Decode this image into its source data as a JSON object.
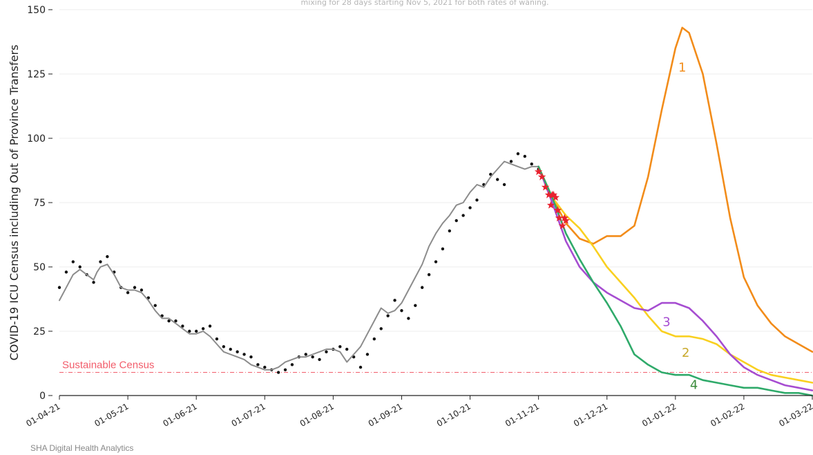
{
  "chart_data": {
    "type": "line",
    "subtitle": "mixing for 28 days starting Nov 5, 2021 for both rates of waning.",
    "ylabel": "COVID-19 ICU Census including Out of Province Transfers",
    "ylim": [
      0,
      150
    ],
    "yticks": [
      0,
      25,
      50,
      75,
      100,
      125,
      150
    ],
    "xticks": [
      "01-04-21",
      "01-05-21",
      "01-06-21",
      "01-07-21",
      "01-08-21",
      "01-09-21",
      "01-10-21",
      "01-11-21",
      "01-12-21",
      "01-01-22",
      "01-02-22",
      "01-03-22"
    ],
    "grid": "horizontal",
    "footer": "SHA Digital Health Analytics",
    "reference_line": {
      "label": "Sustainable Census",
      "value": 9,
      "color": "#f25c6a"
    },
    "observed_points": {
      "color": "#111111",
      "x": [
        0.0,
        0.1,
        0.2,
        0.3,
        0.4,
        0.5,
        0.6,
        0.7,
        0.8,
        0.9,
        1.0,
        1.1,
        1.2,
        1.3,
        1.4,
        1.5,
        1.6,
        1.7,
        1.8,
        1.9,
        2.0,
        2.1,
        2.2,
        2.3,
        2.4,
        2.5,
        2.6,
        2.7,
        2.8,
        2.9,
        3.0,
        3.1,
        3.2,
        3.3,
        3.4,
        3.5,
        3.6,
        3.7,
        3.8,
        3.9,
        4.0,
        4.1,
        4.2,
        4.3,
        4.4,
        4.5,
        4.6,
        4.7,
        4.8,
        4.9,
        5.0,
        5.1,
        5.2,
        5.3,
        5.4,
        5.5,
        5.6,
        5.7,
        5.8,
        5.9,
        6.0,
        6.1,
        6.2,
        6.3,
        6.4,
        6.5,
        6.6,
        6.7,
        6.8,
        6.9,
        7.0
      ],
      "y": [
        42,
        48,
        52,
        50,
        47,
        44,
        52,
        54,
        48,
        42,
        40,
        42,
        41,
        38,
        35,
        31,
        29,
        29,
        27,
        25,
        25,
        26,
        27,
        22,
        19,
        18,
        17,
        16,
        15,
        12,
        11,
        10,
        9,
        10,
        12,
        15,
        16,
        15,
        14,
        17,
        18,
        19,
        18,
        15,
        11,
        16,
        22,
        26,
        31,
        37,
        33,
        30,
        35,
        42,
        47,
        52,
        57,
        64,
        68,
        70,
        73,
        76,
        82,
        86,
        84,
        82,
        91,
        94,
        93,
        90,
        88
      ]
    },
    "series": [
      {
        "name": "",
        "color": "#8c8c8c",
        "x": [
          0.0,
          0.1,
          0.2,
          0.3,
          0.4,
          0.5,
          0.55,
          0.6,
          0.7,
          0.8,
          0.9,
          1.0,
          1.1,
          1.2,
          1.3,
          1.4,
          1.5,
          1.6,
          1.7,
          1.8,
          1.9,
          2.0,
          2.1,
          2.2,
          2.3,
          2.4,
          2.5,
          2.6,
          2.7,
          2.8,
          2.9,
          3.0,
          3.1,
          3.2,
          3.3,
          3.4,
          3.5,
          3.6,
          3.7,
          3.8,
          3.9,
          4.0,
          4.1,
          4.2,
          4.3,
          4.4,
          4.5,
          4.6,
          4.7,
          4.8,
          4.9,
          5.0,
          5.1,
          5.2,
          5.3,
          5.4,
          5.5,
          5.6,
          5.7,
          5.8,
          5.9,
          6.0,
          6.1,
          6.2,
          6.3,
          6.4,
          6.5,
          6.6,
          6.7,
          6.8,
          6.9,
          7.0
        ],
        "y": [
          37,
          42,
          47,
          49,
          47,
          45,
          48,
          50,
          51,
          47,
          42,
          41,
          41,
          40,
          37,
          33,
          30,
          30,
          28,
          26,
          24,
          24,
          25,
          23,
          20,
          17,
          16,
          15,
          14,
          12,
          11,
          10,
          10,
          11,
          13,
          14,
          15,
          15,
          16,
          17,
          18,
          18,
          17,
          13,
          16,
          19,
          24,
          29,
          34,
          32,
          33,
          36,
          41,
          46,
          51,
          58,
          63,
          67,
          70,
          74,
          75,
          79,
          82,
          81,
          85,
          88,
          91,
          90,
          89,
          88,
          89,
          89
        ]
      },
      {
        "name": "1",
        "color": "#f28c1a",
        "x": [
          7.0,
          7.2,
          7.4,
          7.6,
          7.8,
          8.0,
          8.2,
          8.4,
          8.6,
          8.8,
          9.0,
          9.1,
          9.2,
          9.4,
          9.6,
          9.8,
          10.0,
          10.2,
          10.4,
          10.6,
          10.8,
          11.0
        ],
        "y": [
          89,
          77,
          67,
          61,
          59,
          62,
          62,
          66,
          85,
          111,
          135,
          143,
          141,
          125,
          98,
          69,
          46,
          35,
          28,
          23,
          20,
          17
        ]
      },
      {
        "name": "2",
        "color": "#f9d020",
        "x": [
          7.0,
          7.2,
          7.4,
          7.6,
          7.8,
          8.0,
          8.2,
          8.4,
          8.6,
          8.8,
          9.0,
          9.2,
          9.4,
          9.6,
          9.8,
          10.0,
          10.2,
          10.4,
          10.6,
          10.8,
          11.0
        ],
        "y": [
          89,
          77,
          70,
          65,
          58,
          50,
          44,
          38,
          31,
          25,
          23,
          23,
          22,
          20,
          16,
          13,
          10,
          8,
          7,
          6,
          5
        ]
      },
      {
        "name": "3",
        "color": "#a64dd1",
        "x": [
          7.0,
          7.2,
          7.4,
          7.6,
          7.8,
          8.0,
          8.2,
          8.4,
          8.6,
          8.8,
          9.0,
          9.2,
          9.4,
          9.6,
          9.8,
          10.0,
          10.2,
          10.4,
          10.6,
          10.8,
          11.0
        ],
        "y": [
          89,
          75,
          60,
          50,
          44,
          40,
          37,
          34,
          33,
          36,
          36,
          34,
          29,
          23,
          16,
          11,
          8,
          6,
          4,
          3,
          2
        ]
      },
      {
        "name": "4",
        "color": "#2faa6a",
        "x": [
          7.0,
          7.2,
          7.4,
          7.6,
          7.8,
          8.0,
          8.2,
          8.4,
          8.6,
          8.8,
          9.0,
          9.2,
          9.4,
          9.6,
          9.8,
          10.0,
          10.2,
          10.4,
          10.6,
          10.8,
          11.0
        ],
        "y": [
          89,
          77,
          63,
          53,
          44,
          36,
          27,
          16,
          12,
          9,
          8,
          8,
          6,
          5,
          4,
          3,
          3,
          2,
          1,
          1,
          0
        ]
      }
    ],
    "markers": {
      "color": "#e8222f",
      "x": [
        7.0,
        7.05,
        7.1,
        7.15,
        7.18,
        7.2,
        7.22,
        7.25,
        7.28,
        7.3,
        7.35,
        7.38,
        7.4
      ],
      "y": [
        87,
        85,
        81,
        78,
        74,
        78,
        78,
        77,
        72,
        69,
        66,
        69,
        68
      ]
    },
    "curve_labels": [
      {
        "text": "1",
        "x": 9.1,
        "y": 126,
        "color": "#f28c1a"
      },
      {
        "text": "2",
        "x": 9.15,
        "y": 15,
        "color": "#c8a82a"
      },
      {
        "text": "3",
        "x": 8.87,
        "y": 27,
        "color": "#a64dd1"
      },
      {
        "text": "4",
        "x": 9.27,
        "y": 2.5,
        "color": "#3a8a3a"
      }
    ]
  }
}
